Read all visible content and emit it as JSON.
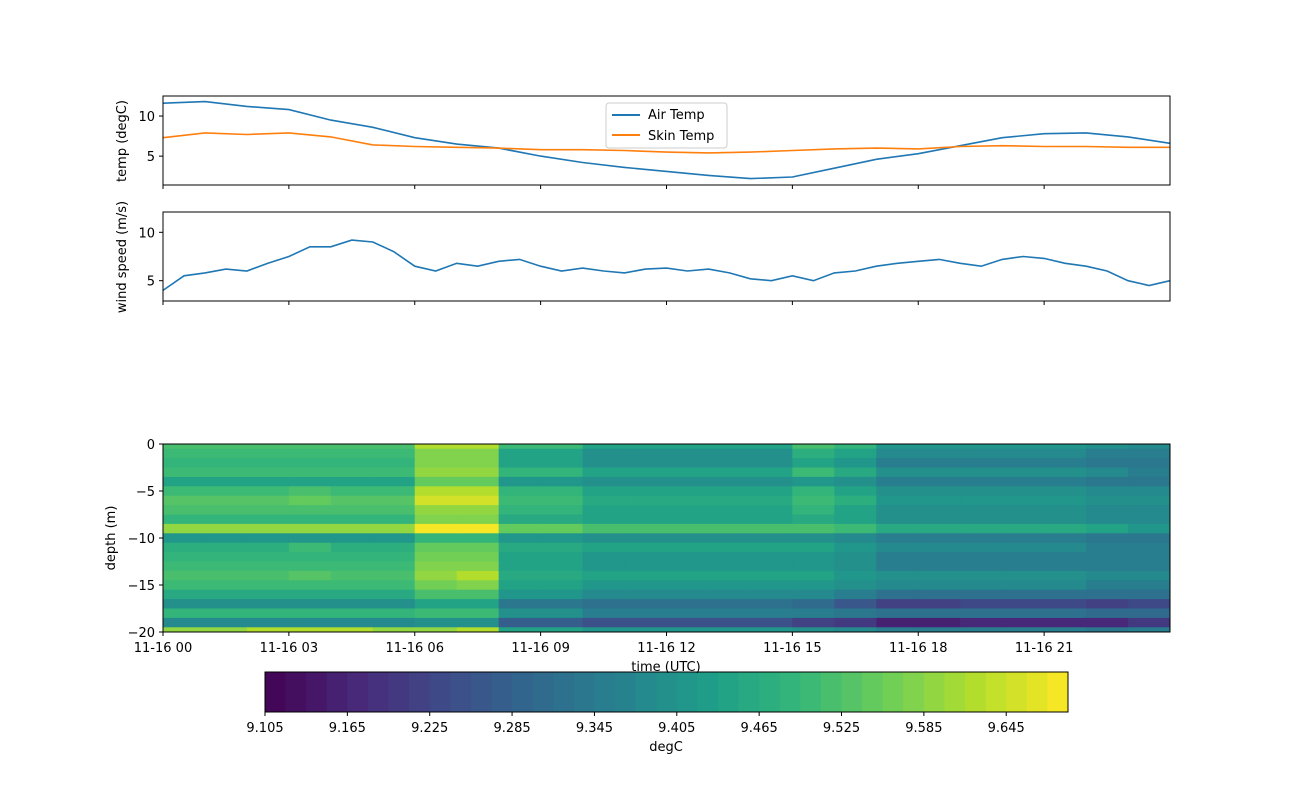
{
  "chart_data": [
    {
      "type": "line",
      "ylabel": "temp (degC)",
      "ylim": [
        1.4,
        12.5
      ],
      "xlim_hours": [
        0,
        24
      ],
      "yticks": [
        "5",
        "10"
      ],
      "legend": {
        "placement": "top-center"
      },
      "x_hours": [
        0,
        1,
        2,
        3,
        4,
        5,
        6,
        7,
        8,
        9,
        10,
        11,
        12,
        13,
        14,
        15,
        16,
        17,
        18,
        19,
        20,
        21,
        22,
        23,
        24
      ],
      "series": [
        {
          "name": "Air Temp",
          "color": "#1f77b4",
          "values": [
            11.6,
            11.8,
            11.2,
            10.8,
            9.5,
            8.6,
            7.3,
            6.5,
            6.0,
            5.0,
            4.2,
            3.6,
            3.1,
            2.6,
            2.2,
            2.4,
            3.5,
            4.6,
            5.3,
            6.3,
            7.3,
            7.8,
            7.9,
            7.4,
            6.6
          ]
        },
        {
          "name": "Skin Temp",
          "color": "#ff7f0e",
          "values": [
            7.3,
            7.9,
            7.7,
            7.9,
            7.4,
            6.4,
            6.2,
            6.1,
            6.0,
            5.8,
            5.8,
            5.7,
            5.5,
            5.4,
            5.5,
            5.7,
            5.9,
            6.0,
            5.9,
            6.2,
            6.3,
            6.2,
            6.2,
            6.1,
            6.1
          ]
        }
      ]
    },
    {
      "type": "line",
      "ylabel": "wind speed (m/s)",
      "ylim": [
        2.9,
        12.1
      ],
      "xlim_hours": [
        0,
        24
      ],
      "yticks": [
        "5",
        "10"
      ],
      "x_hours": [
        0,
        0.5,
        1,
        1.5,
        2,
        2.5,
        3,
        3.5,
        4,
        4.5,
        5,
        5.5,
        6,
        6.5,
        7,
        7.5,
        8,
        8.5,
        9,
        9.5,
        10,
        10.5,
        11,
        11.5,
        12,
        12.5,
        13,
        13.5,
        14,
        14.5,
        15,
        15.5,
        16,
        16.5,
        17,
        17.5,
        18,
        18.5,
        19,
        19.5,
        20,
        20.5,
        21,
        21.5,
        22,
        22.5,
        23,
        23.5,
        24
      ],
      "series": [
        {
          "color": "#1f77b4",
          "values": [
            4.0,
            5.5,
            5.8,
            6.2,
            6.0,
            6.8,
            7.5,
            8.5,
            8.5,
            9.2,
            9.0,
            8.0,
            6.5,
            6.0,
            6.8,
            6.5,
            7.0,
            7.2,
            6.5,
            6.0,
            6.3,
            6.0,
            5.8,
            6.2,
            6.3,
            6.0,
            6.2,
            5.8,
            5.2,
            5.0,
            5.5,
            5.0,
            5.8,
            6.0,
            6.5,
            6.8,
            7.0,
            7.2,
            6.8,
            6.5,
            7.2,
            7.5,
            7.3,
            6.8,
            6.5,
            6.0,
            5.0,
            4.5,
            5.0
          ]
        }
      ]
    },
    {
      "type": "heatmap",
      "ylabel": "depth (m)",
      "xlabel": "time (UTC)",
      "ylim": [
        -20,
        0
      ],
      "colormap": "viridis",
      "xticks": [
        "11-16 00",
        "11-16 03",
        "11-16 06",
        "11-16 09",
        "11-16 12",
        "11-16 15",
        "11-16 18",
        "11-16 21"
      ],
      "yticks": [
        "0",
        "−5",
        "−10",
        "−15",
        "−20"
      ],
      "x_hours": [
        0,
        1,
        2,
        3,
        4,
        5,
        6,
        7,
        8,
        9,
        10,
        11,
        12,
        13,
        14,
        15,
        16,
        17,
        18,
        19,
        20,
        21,
        22,
        23
      ],
      "depths": [
        0,
        -1,
        -2,
        -3,
        -4,
        -5,
        -6,
        -7,
        -8,
        -9,
        -10,
        -11,
        -12,
        -13,
        -14,
        -15,
        -16,
        -17,
        -18,
        -19,
        -20
      ],
      "values_by_time": [
        [
          9.52,
          9.5,
          9.48,
          9.5,
          9.44,
          9.5,
          9.53,
          9.52,
          9.48,
          9.6,
          9.42,
          9.47,
          9.48,
          9.5,
          9.52,
          9.5,
          9.46,
          9.4,
          9.48,
          9.38,
          9.6
        ],
        [
          9.52,
          9.5,
          9.48,
          9.5,
          9.44,
          9.5,
          9.53,
          9.52,
          9.48,
          9.6,
          9.42,
          9.47,
          9.48,
          9.5,
          9.52,
          9.5,
          9.46,
          9.4,
          9.48,
          9.38,
          9.6
        ],
        [
          9.52,
          9.5,
          9.48,
          9.5,
          9.44,
          9.5,
          9.53,
          9.52,
          9.48,
          9.6,
          9.42,
          9.47,
          9.48,
          9.5,
          9.52,
          9.5,
          9.46,
          9.4,
          9.48,
          9.38,
          9.62
        ],
        [
          9.52,
          9.5,
          9.48,
          9.5,
          9.44,
          9.52,
          9.55,
          9.52,
          9.48,
          9.6,
          9.42,
          9.5,
          9.48,
          9.5,
          9.54,
          9.5,
          9.46,
          9.4,
          9.48,
          9.38,
          9.62
        ],
        [
          9.52,
          9.5,
          9.48,
          9.5,
          9.44,
          9.5,
          9.53,
          9.52,
          9.48,
          9.6,
          9.42,
          9.47,
          9.48,
          9.5,
          9.52,
          9.5,
          9.46,
          9.4,
          9.48,
          9.38,
          9.62
        ],
        [
          9.52,
          9.5,
          9.48,
          9.5,
          9.44,
          9.5,
          9.53,
          9.52,
          9.48,
          9.6,
          9.42,
          9.47,
          9.48,
          9.5,
          9.52,
          9.5,
          9.46,
          9.4,
          9.48,
          9.38,
          9.6
        ],
        [
          9.62,
          9.58,
          9.58,
          9.6,
          9.55,
          9.62,
          9.66,
          9.6,
          9.58,
          9.68,
          9.48,
          9.55,
          9.56,
          9.58,
          9.6,
          9.56,
          9.52,
          9.44,
          9.5,
          9.4,
          9.6
        ],
        [
          9.62,
          9.58,
          9.58,
          9.6,
          9.55,
          9.62,
          9.66,
          9.6,
          9.58,
          9.68,
          9.48,
          9.55,
          9.56,
          9.58,
          9.62,
          9.58,
          9.52,
          9.44,
          9.5,
          9.4,
          9.62
        ],
        [
          9.5,
          9.45,
          9.44,
          9.48,
          9.42,
          9.48,
          9.5,
          9.48,
          9.46,
          9.55,
          9.42,
          9.46,
          9.45,
          9.45,
          9.46,
          9.45,
          9.42,
          9.34,
          9.4,
          9.28,
          9.45
        ],
        [
          9.5,
          9.45,
          9.44,
          9.48,
          9.42,
          9.48,
          9.5,
          9.48,
          9.46,
          9.55,
          9.42,
          9.46,
          9.45,
          9.45,
          9.46,
          9.45,
          9.42,
          9.34,
          9.4,
          9.28,
          9.45
        ],
        [
          9.45,
          9.4,
          9.4,
          9.45,
          9.4,
          9.44,
          9.46,
          9.44,
          9.44,
          9.52,
          9.4,
          9.44,
          9.42,
          9.42,
          9.44,
          9.42,
          9.38,
          9.32,
          9.36,
          9.25,
          9.42
        ],
        [
          9.45,
          9.4,
          9.4,
          9.45,
          9.4,
          9.44,
          9.46,
          9.44,
          9.44,
          9.52,
          9.4,
          9.44,
          9.42,
          9.42,
          9.44,
          9.42,
          9.38,
          9.32,
          9.36,
          9.25,
          9.42
        ],
        [
          9.45,
          9.4,
          9.4,
          9.45,
          9.4,
          9.44,
          9.46,
          9.44,
          9.44,
          9.52,
          9.4,
          9.44,
          9.42,
          9.42,
          9.44,
          9.42,
          9.38,
          9.32,
          9.36,
          9.25,
          9.42
        ],
        [
          9.45,
          9.4,
          9.4,
          9.45,
          9.4,
          9.44,
          9.46,
          9.44,
          9.44,
          9.52,
          9.4,
          9.44,
          9.42,
          9.42,
          9.44,
          9.42,
          9.38,
          9.32,
          9.36,
          9.25,
          9.42
        ],
        [
          9.45,
          9.4,
          9.4,
          9.45,
          9.4,
          9.44,
          9.46,
          9.44,
          9.44,
          9.52,
          9.4,
          9.44,
          9.42,
          9.42,
          9.44,
          9.42,
          9.38,
          9.32,
          9.36,
          9.25,
          9.42
        ],
        [
          9.52,
          9.47,
          9.45,
          9.5,
          9.42,
          9.48,
          9.5,
          9.48,
          9.46,
          9.52,
          9.4,
          9.44,
          9.42,
          9.42,
          9.44,
          9.42,
          9.38,
          9.3,
          9.36,
          9.22,
          9.4
        ],
        [
          9.48,
          9.44,
          9.42,
          9.46,
          9.4,
          9.45,
          9.47,
          9.45,
          9.44,
          9.5,
          9.38,
          9.42,
          9.4,
          9.4,
          9.42,
          9.4,
          9.36,
          9.26,
          9.34,
          9.2,
          9.38
        ],
        [
          9.42,
          9.38,
          9.36,
          9.4,
          9.36,
          9.4,
          9.42,
          9.4,
          9.4,
          9.46,
          9.35,
          9.38,
          9.36,
          9.36,
          9.4,
          9.38,
          9.33,
          9.22,
          9.32,
          9.16,
          9.35
        ],
        [
          9.42,
          9.38,
          9.36,
          9.4,
          9.36,
          9.4,
          9.42,
          9.4,
          9.4,
          9.46,
          9.35,
          9.38,
          9.36,
          9.36,
          9.4,
          9.38,
          9.33,
          9.22,
          9.32,
          9.16,
          9.35
        ],
        [
          9.42,
          9.38,
          9.36,
          9.4,
          9.36,
          9.4,
          9.42,
          9.4,
          9.4,
          9.46,
          9.35,
          9.38,
          9.36,
          9.36,
          9.4,
          9.38,
          9.33,
          9.24,
          9.32,
          9.18,
          9.35
        ],
        [
          9.42,
          9.38,
          9.36,
          9.4,
          9.36,
          9.4,
          9.42,
          9.4,
          9.4,
          9.46,
          9.35,
          9.38,
          9.36,
          9.36,
          9.4,
          9.38,
          9.33,
          9.24,
          9.32,
          9.18,
          9.35
        ],
        [
          9.42,
          9.38,
          9.36,
          9.4,
          9.36,
          9.4,
          9.42,
          9.4,
          9.4,
          9.46,
          9.35,
          9.38,
          9.36,
          9.36,
          9.4,
          9.38,
          9.33,
          9.24,
          9.32,
          9.18,
          9.35
        ],
        [
          9.4,
          9.36,
          9.34,
          9.38,
          9.34,
          9.38,
          9.4,
          9.38,
          9.38,
          9.44,
          9.34,
          9.36,
          9.35,
          9.35,
          9.38,
          9.36,
          9.32,
          9.22,
          9.3,
          9.18,
          9.34
        ],
        [
          9.38,
          9.35,
          9.34,
          9.36,
          9.34,
          9.38,
          9.4,
          9.38,
          9.38,
          9.42,
          9.34,
          9.36,
          9.35,
          9.35,
          9.38,
          9.36,
          9.32,
          9.24,
          9.3,
          9.2,
          9.36
        ]
      ],
      "colorbar": {
        "label": "degC",
        "levels_min": 9.105,
        "levels_max": 9.69,
        "level_step": 0.015,
        "ticks": [
          "9.105",
          "9.165",
          "9.225",
          "9.285",
          "9.345",
          "9.405",
          "9.465",
          "9.525",
          "9.585",
          "9.645"
        ]
      }
    }
  ]
}
